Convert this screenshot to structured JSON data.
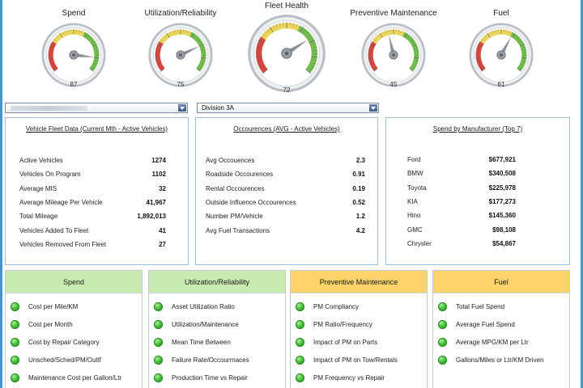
{
  "gauges": [
    {
      "title": "Spend",
      "value": "87",
      "level": 87,
      "size": "small"
    },
    {
      "title": "Utilization/Reliability",
      "value": "75",
      "level": 75,
      "size": "small"
    },
    {
      "title": "Fleet Health",
      "value": "72",
      "level": 72,
      "size": "large"
    },
    {
      "title": "Preventive  Maintenance",
      "value": "45",
      "level": 45,
      "size": "small"
    },
    {
      "title": "Fuel",
      "value": "61",
      "level": 61,
      "size": "small"
    }
  ],
  "filters": {
    "region_value": "",
    "division_value": "Division 3A"
  },
  "panels": {
    "vehicle": {
      "title": "Vehicle Fleet Data (Current Mth - Active Vehicles)",
      "rows": [
        {
          "label": "Active Vehicles",
          "value": "1274"
        },
        {
          "label": "Vehicles On Program",
          "value": "1102"
        },
        {
          "label": "Average MIS",
          "value": "32"
        },
        {
          "label": "Average Mileage Per Vehicle",
          "value": "41,967"
        },
        {
          "label": "Total Mileage",
          "value": "1,892,013"
        },
        {
          "label": "Vehicles Added To Fleet",
          "value": "41"
        },
        {
          "label": "Vehicles Removed From Fleet",
          "value": "27"
        }
      ]
    },
    "occurrences": {
      "title": "Occourences (AVG - Active Vehicles)",
      "rows": [
        {
          "label": "Avg Occouences",
          "value": "2.3"
        },
        {
          "label": "Roadside Occourences",
          "value": "0.91"
        },
        {
          "label": "Rental Occourences",
          "value": "0.19"
        },
        {
          "label": "Outside Influence Occourences",
          "value": "0.52"
        },
        {
          "label": "Number PM/Vehicle",
          "value": "1.2"
        },
        {
          "label": "Avg Fuel Transactions",
          "value": "4.2"
        }
      ]
    },
    "manufacturer": {
      "title": "Spend by Manufacturer (Top 7)",
      "rows": [
        {
          "label": "Ford",
          "value": "$677,921"
        },
        {
          "label": "BMW",
          "value": "$340,508"
        },
        {
          "label": "Toyota",
          "value": "$225,978"
        },
        {
          "label": "KIA",
          "value": "$177,273"
        },
        {
          "label": "Hino",
          "value": "$145,360"
        },
        {
          "label": "GMC",
          "value": "$98,108"
        },
        {
          "label": "Chrysler",
          "value": "$54,867"
        }
      ]
    }
  },
  "kpis": [
    {
      "title": "Spend",
      "color": "#c9ebb0",
      "items": [
        "Cost per Mile/KM",
        "Cost per Month",
        "Cost by Repair Category",
        "Unsched/Sched/PM/Outlf",
        "Maintenance Cost per Gallon/Ltr"
      ]
    },
    {
      "title": "Utilization/Reliability",
      "color": "#c9ebb0",
      "items": [
        "Asset Utilization Ratio",
        "Utilization/Maintenance",
        "Mean Time Between",
        "Failure Rate/Occourrnaces",
        "Production Time vs Repair"
      ]
    },
    {
      "title": "Preventive Maintenance",
      "color": "#fbd36a",
      "items": [
        "PM Compliancy",
        "PM Ratio/Frequency",
        "Impact of PM on Parts",
        "Impact of PM on Tow/Rentals",
        "PM Frequency vs Repair"
      ]
    },
    {
      "title": "Fuel",
      "color": "#fbd36a",
      "items": [
        "Total Fuel Spend",
        "Average Fuel Spend",
        "Average MPG/KM per Ltr",
        "Gallons/Miles or Ltr/KM Driven"
      ]
    }
  ],
  "colors": {
    "frame": "#3c97d3",
    "panel_border": "#9cc0dc",
    "gauge_red": "#d2322b",
    "gauge_yellow": "#e9d24a",
    "gauge_green": "#62b539",
    "status_green": "#45c13a"
  }
}
